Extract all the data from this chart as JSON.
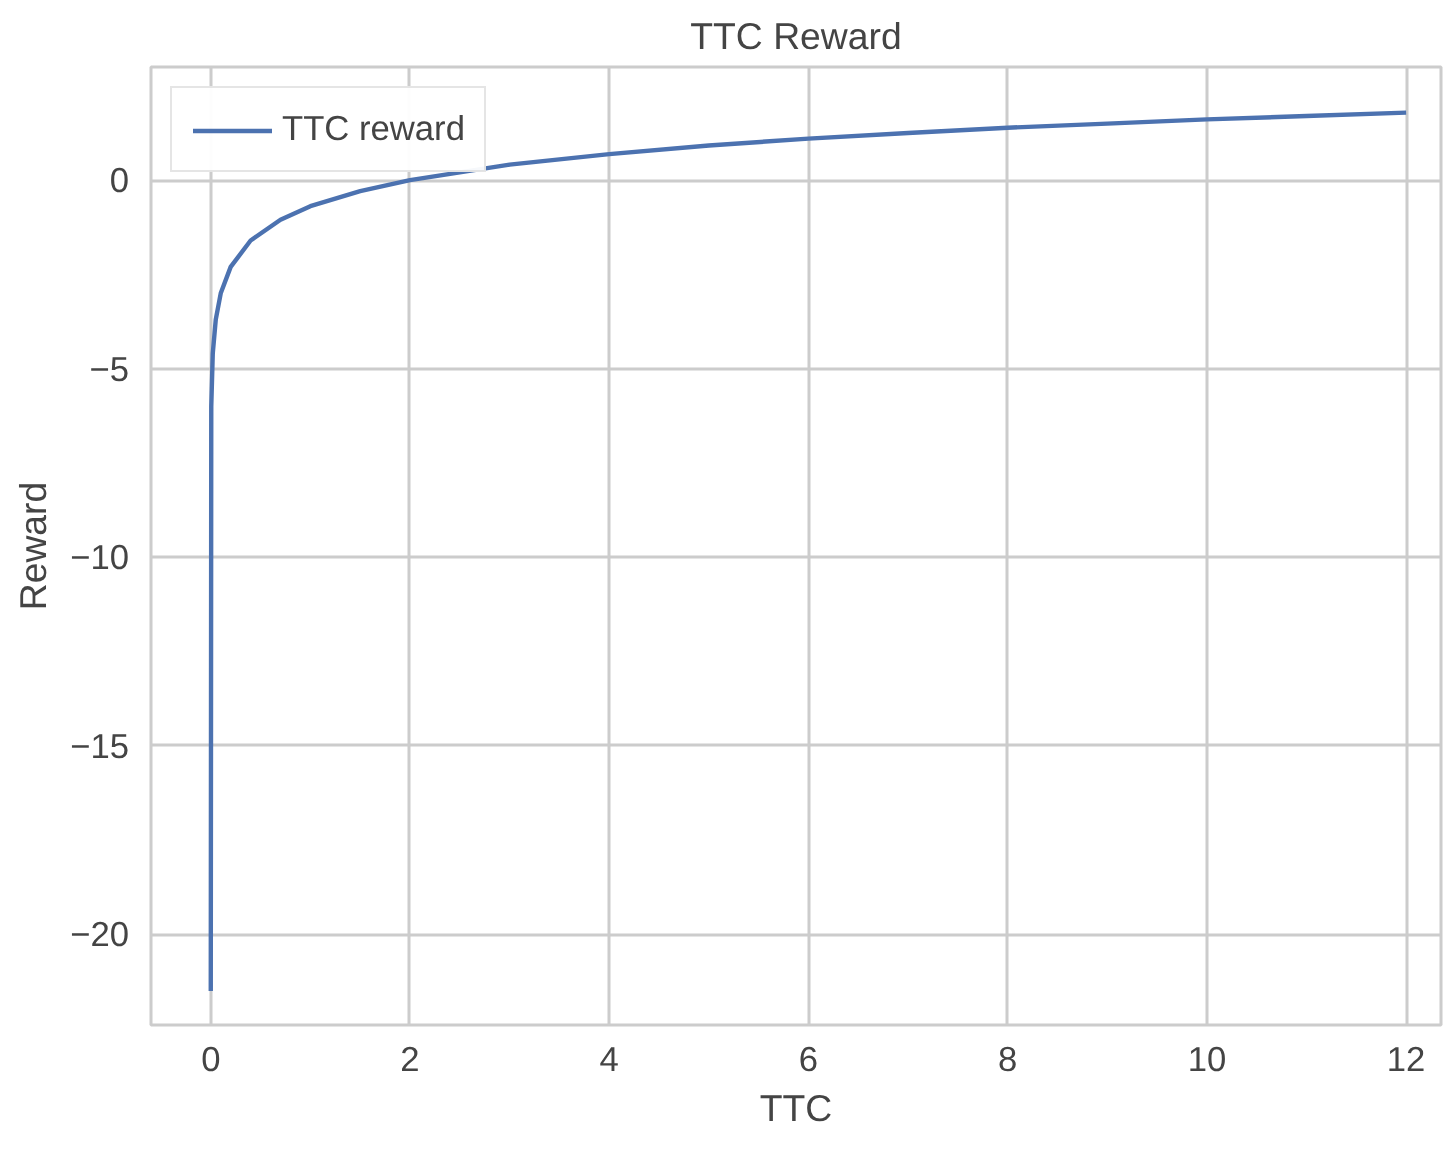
{
  "chart_data": {
    "type": "line",
    "title": "TTC Reward",
    "xlabel": "TTC",
    "ylabel": "Reward",
    "x": [
      0,
      0.005,
      0.02,
      0.05,
      0.1,
      0.2,
      0.4,
      0.7,
      1,
      1.5,
      2,
      3,
      4,
      5,
      6,
      7,
      8,
      9,
      10,
      11,
      12
    ],
    "series": [
      {
        "name": "TTC reward",
        "color": "#4c72b0",
        "values": [
          -21.5,
          -6,
          -4.6,
          -3.7,
          -3.0,
          -2.3,
          -1.6,
          -1.05,
          -0.69,
          -0.29,
          0,
          0.41,
          0.69,
          0.92,
          1.1,
          1.25,
          1.39,
          1.5,
          1.61,
          1.7,
          1.79
        ]
      }
    ],
    "xlim": [
      -0.6,
      12.35
    ],
    "ylim": [
      -22.4,
      3.0
    ],
    "xticks": [
      0,
      2,
      4,
      6,
      8,
      10,
      12
    ],
    "yticks": [
      0,
      -5,
      -10,
      -15,
      -20
    ],
    "grid": true,
    "legend": "top left",
    "marker": "none",
    "line_style": "solid"
  }
}
